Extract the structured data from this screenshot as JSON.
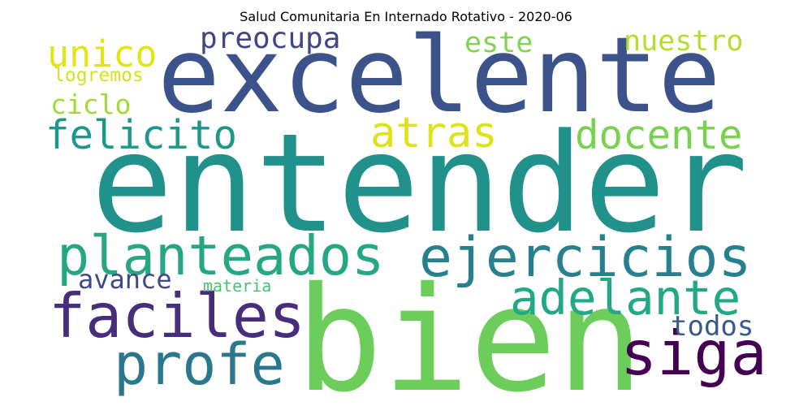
{
  "title": "Salud Comunitaria En Internado Rotativo - 2020-06",
  "words": [
    {
      "text": "entender",
      "color": "#21918c"
    },
    {
      "text": "bien",
      "color": "#6ccd5a"
    },
    {
      "text": "excelente",
      "color": "#3b528b"
    },
    {
      "text": "planteados",
      "color": "#26a784"
    },
    {
      "text": "ejercicios",
      "color": "#27808e"
    },
    {
      "text": "faciles",
      "color": "#472d7b"
    },
    {
      "text": "adelante",
      "color": "#22a884"
    },
    {
      "text": "profe",
      "color": "#2a788e"
    },
    {
      "text": "siga",
      "color": "#440154"
    },
    {
      "text": "felicito",
      "color": "#1f968b"
    },
    {
      "text": "atras",
      "color": "#dde318"
    },
    {
      "text": "docente",
      "color": "#7ad151"
    },
    {
      "text": "unico",
      "color": "#e2e418"
    },
    {
      "text": "preocupa",
      "color": "#414487"
    },
    {
      "text": "este",
      "color": "#7fd34e"
    },
    {
      "text": "nuestro",
      "color": "#b5de2b"
    },
    {
      "text": "ciclo",
      "color": "#a0da39"
    },
    {
      "text": "logremos",
      "color": "#d2e21b"
    },
    {
      "text": "avance",
      "color": "#3e4989"
    },
    {
      "text": "materia",
      "color": "#4ac16d"
    },
    {
      "text": "todos",
      "color": "#38598c"
    }
  ]
}
